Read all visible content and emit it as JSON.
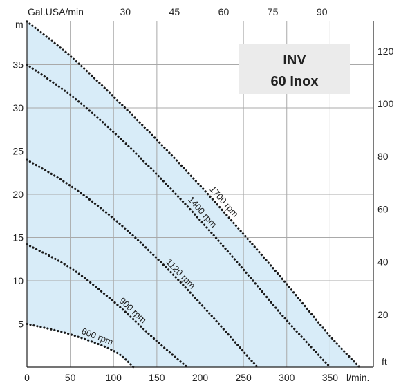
{
  "chart_data": {
    "type": "line",
    "title_box": [
      "INV",
      "60 Inox"
    ],
    "x_bottom": {
      "unit_label": "l/min.",
      "ticks": [
        0,
        50,
        100,
        150,
        200,
        250,
        300,
        350
      ],
      "range": [
        0,
        400
      ]
    },
    "x_top": {
      "unit_label": "Gal.USA/min",
      "ticks": [
        30,
        45,
        60,
        75,
        90
      ]
    },
    "y_left": {
      "unit_label": "m",
      "ticks": [
        5,
        10,
        15,
        20,
        25,
        30,
        35
      ],
      "range": [
        0,
        40
      ]
    },
    "y_right": {
      "unit_label": "ft",
      "ticks": [
        20,
        40,
        60,
        80,
        100,
        120
      ]
    },
    "grid": true,
    "region_color": "#d8ecf8",
    "line_color": "#1a1a1a",
    "series": [
      {
        "name": "600 rpm",
        "points": [
          [
            0,
            5
          ],
          [
            50,
            3.8
          ],
          [
            100,
            1.9
          ],
          [
            123,
            0
          ]
        ]
      },
      {
        "name": "900 rpm",
        "points": [
          [
            0,
            14.2
          ],
          [
            50,
            11.5
          ],
          [
            100,
            7.6
          ],
          [
            150,
            3
          ],
          [
            185,
            0
          ]
        ]
      },
      {
        "name": "1120 rpm",
        "points": [
          [
            0,
            24
          ],
          [
            50,
            21
          ],
          [
            100,
            17.2
          ],
          [
            150,
            12.6
          ],
          [
            200,
            7.4
          ],
          [
            266,
            0
          ]
        ]
      },
      {
        "name": "1400 rpm",
        "points": [
          [
            0,
            35
          ],
          [
            50,
            31.5
          ],
          [
            100,
            27.2
          ],
          [
            150,
            22.3
          ],
          [
            200,
            17
          ],
          [
            250,
            11.3
          ],
          [
            300,
            5.4
          ],
          [
            350,
            0
          ]
        ]
      },
      {
        "name": "1700 rpm",
        "points": [
          [
            0,
            40
          ],
          [
            50,
            36
          ],
          [
            100,
            31.3
          ],
          [
            150,
            26.3
          ],
          [
            200,
            21
          ],
          [
            250,
            15.4
          ],
          [
            300,
            9.6
          ],
          [
            350,
            3.6
          ],
          [
            384,
            0
          ]
        ]
      }
    ]
  }
}
